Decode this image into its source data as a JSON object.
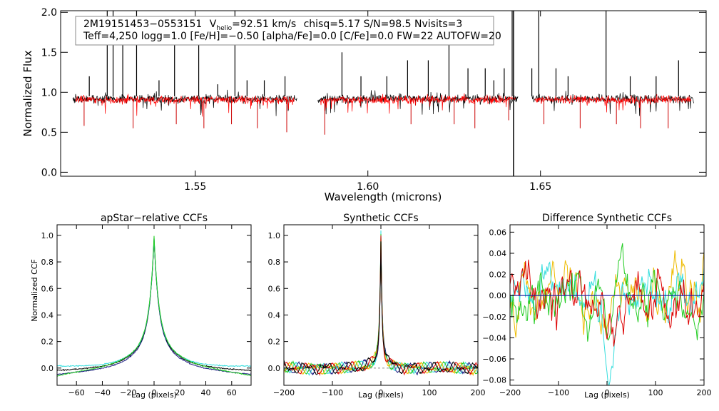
{
  "chart_data": [
    {
      "type": "line",
      "name": "spectrum",
      "ylabel": "Normalized Flux",
      "xlabel": "Wavelength (microns)",
      "xlim": [
        1.511,
        1.698
      ],
      "ylim": [
        -0.05,
        2.02
      ],
      "xticks": [
        1.55,
        1.6,
        1.65
      ],
      "xtick_labels": [
        "1.55",
        "1.60",
        "1.65"
      ],
      "yticks": [
        0.0,
        0.5,
        1.0,
        1.5,
        2.0
      ],
      "ytick_labels": [
        "0.0",
        "0.5",
        "1.0",
        "1.5",
        "2.0"
      ],
      "info_line1": {
        "name": "2M19151453−0553151",
        "vhelio_prefix": "V",
        "vhelio_sub": "helio",
        "vhelio_value": "=92.51 km/s",
        "rest": "chisq=5.17  S/N=98.5  Nvisits=3"
      },
      "info_line2": "Teff=4,250 logg=1.0 [Fe/H]=−0.50 [alpha/Fe]=0.0 [C/Fe]=0.0 FW=22 AUTOFW=20",
      "chips": [
        [
          1.5145,
          1.5795
        ],
        [
          1.5855,
          1.6435
        ],
        [
          1.6475,
          1.6945
        ]
      ],
      "series": [
        {
          "color": "#000000",
          "baseline": 0.93
        },
        {
          "color": "#ff0000",
          "baseline": 0.92
        }
      ],
      "spikes": [
        {
          "x": 1.5193,
          "y": 1.2
        },
        {
          "x": 1.5245,
          "y": 2.1
        },
        {
          "x": 1.5262,
          "y": 2.1
        },
        {
          "x": 1.529,
          "y": 1.6
        },
        {
          "x": 1.533,
          "y": 2.1
        },
        {
          "x": 1.5395,
          "y": 1.15
        },
        {
          "x": 1.544,
          "y": 1.6
        },
        {
          "x": 1.551,
          "y": 1.6
        },
        {
          "x": 1.5565,
          "y": 1.1
        },
        {
          "x": 1.5615,
          "y": 2.1
        },
        {
          "x": 1.565,
          "y": 1.15
        },
        {
          "x": 1.57,
          "y": 1.15
        },
        {
          "x": 1.576,
          "y": 1.2
        },
        {
          "x": 1.5925,
          "y": 1.5
        },
        {
          "x": 1.598,
          "y": 1.2
        },
        {
          "x": 1.6055,
          "y": 1.2
        },
        {
          "x": 1.6115,
          "y": 1.4
        },
        {
          "x": 1.6175,
          "y": 1.4
        },
        {
          "x": 1.6235,
          "y": 1.6
        },
        {
          "x": 1.629,
          "y": 1.3
        },
        {
          "x": 1.634,
          "y": 1.3
        },
        {
          "x": 1.6365,
          "y": 1.15
        },
        {
          "x": 1.6395,
          "y": 1.3
        },
        {
          "x": 1.6418,
          "y": 2.1
        },
        {
          "x": 1.6475,
          "y": 1.3
        },
        {
          "x": 1.6495,
          "y": 2.1
        },
        {
          "x": 1.6545,
          "y": 1.3
        },
        {
          "x": 1.658,
          "y": 1.2
        },
        {
          "x": 1.669,
          "y": 2.1
        },
        {
          "x": 1.676,
          "y": 1.2
        },
        {
          "x": 1.6835,
          "y": 1.2
        },
        {
          "x": 1.69,
          "y": 1.4
        }
      ],
      "dips": [
        {
          "x": 1.5178,
          "y": 0.58
        },
        {
          "x": 1.532,
          "y": 0.55
        },
        {
          "x": 1.5445,
          "y": 0.6
        },
        {
          "x": 1.5525,
          "y": 0.55
        },
        {
          "x": 1.5605,
          "y": 0.6
        },
        {
          "x": 1.568,
          "y": 0.55
        },
        {
          "x": 1.5765,
          "y": 0.5
        },
        {
          "x": 1.5875,
          "y": 0.47
        },
        {
          "x": 1.6125,
          "y": 0.6
        },
        {
          "x": 1.625,
          "y": 0.6
        },
        {
          "x": 1.631,
          "y": 0.55
        },
        {
          "x": 1.6408,
          "y": 0.65
        },
        {
          "x": 1.651,
          "y": 0.6
        },
        {
          "x": 1.6615,
          "y": 0.55
        },
        {
          "x": 1.672,
          "y": 0.6
        },
        {
          "x": 1.679,
          "y": 0.55
        },
        {
          "x": 1.687,
          "y": 0.55
        }
      ],
      "deep_dip": {
        "x": 1.6422,
        "y": -0.05
      }
    },
    {
      "type": "line",
      "name": "apstar-ccf",
      "title": "apStar−relative CCFs",
      "ylabel": "Normalized CCF",
      "xlabel": "Lag (pixels)",
      "xlim": [
        -75,
        75
      ],
      "ylim": [
        -0.13,
        1.08
      ],
      "xticks": [
        -60,
        -40,
        -20,
        0,
        20,
        40,
        60
      ],
      "xtick_labels": [
        "−60",
        "−40",
        "−20",
        "0",
        "20",
        "40",
        "60"
      ],
      "yticks": [
        0.0,
        0.2,
        0.4,
        0.6,
        0.8,
        1.0
      ],
      "ytick_labels": [
        "0.0",
        "0.2",
        "0.4",
        "0.6",
        "0.8",
        "1.0"
      ],
      "series": [
        {
          "color": "#1a1a80",
          "offset": -0.01,
          "tail": -0.04
        },
        {
          "color": "#000000",
          "offset": 0.0,
          "tail": -0.02
        },
        {
          "color": "#33dddd",
          "offset": 0.005,
          "tail": 0.01
        },
        {
          "color": "#22cc22",
          "offset": 0.01,
          "tail": -0.07
        }
      ]
    },
    {
      "type": "line",
      "name": "synthetic-ccf",
      "title": "Synthetic CCFs",
      "xlabel": "Lag (pixels)",
      "xlim": [
        -200,
        200
      ],
      "ylim": [
        -0.13,
        1.08
      ],
      "xticks": [
        -200,
        -100,
        0,
        100,
        200
      ],
      "xtick_labels": [
        "−200",
        "−100",
        "0",
        "100",
        "200"
      ],
      "yticks": [
        0.0,
        0.2,
        0.4,
        0.6,
        0.8,
        1.0
      ],
      "ytick_labels": [
        "0.0",
        "0.2",
        "0.4",
        "0.6",
        "0.8",
        "1.0"
      ],
      "series": [
        {
          "color": "#1a1a80"
        },
        {
          "color": "#33dddd"
        },
        {
          "color": "#22cc22"
        },
        {
          "color": "#eebb00"
        },
        {
          "color": "#dd0000"
        },
        {
          "color": "#000000"
        }
      ]
    },
    {
      "type": "line",
      "name": "difference-ccf",
      "title": "Difference Synthetic CCFs",
      "xlabel": "Lag (pixels)",
      "xlim": [
        -200,
        200
      ],
      "ylim": [
        -0.085,
        0.067
      ],
      "xticks": [
        -200,
        -100,
        0,
        100,
        200
      ],
      "xtick_labels": [
        "−200",
        "−100",
        "0",
        "100",
        "200"
      ],
      "yticks": [
        -0.08,
        -0.06,
        -0.04,
        -0.02,
        0.0,
        0.02,
        0.04,
        0.06
      ],
      "ytick_labels": [
        "−0.08",
        "−0.06",
        "−0.04",
        "−0.02",
        "0.00",
        "0.02",
        "0.04",
        "0.06"
      ],
      "series": [
        {
          "color": "#eebb00"
        },
        {
          "color": "#33dddd"
        },
        {
          "color": "#22cc22"
        },
        {
          "color": "#dd0000"
        }
      ],
      "zero_line_color": "#1a1aa0"
    }
  ]
}
